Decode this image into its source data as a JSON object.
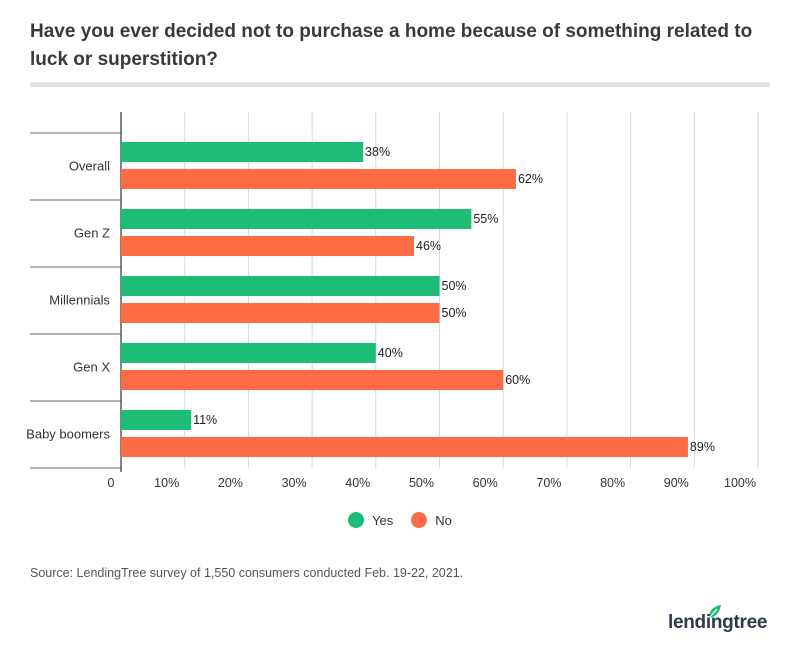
{
  "title": "Have you ever decided not to purchase a home because of something related to luck or superstition?",
  "source": "Source: LendingTree survey of 1,550 consumers conducted Feb. 19-22, 2021.",
  "logo_text": "lendingtree",
  "colors": {
    "yes": "#1dbd76",
    "no": "#ff6b45",
    "grid": "#d9d9d9",
    "axis": "#333333"
  },
  "legend": [
    {
      "label": "Yes",
      "color": "#1dbd76"
    },
    {
      "label": "No",
      "color": "#ff6b45"
    }
  ],
  "chart_data": {
    "type": "bar",
    "orientation": "horizontal",
    "categories": [
      "Overall",
      "Gen Z",
      "Millennials",
      "Gen X",
      "Baby boomers"
    ],
    "series": [
      {
        "name": "Yes",
        "values": [
          38,
          55,
          50,
          40,
          11
        ],
        "labels": [
          "38%",
          "55%",
          "50%",
          "40%",
          "11%"
        ]
      },
      {
        "name": "No",
        "values": [
          62,
          46,
          50,
          60,
          89
        ],
        "labels": [
          "62%",
          "46%",
          "50%",
          "60%",
          "89%"
        ]
      }
    ],
    "xlim": [
      0,
      100
    ],
    "x_ticks": [
      0,
      10,
      20,
      30,
      40,
      50,
      60,
      70,
      80,
      90,
      100
    ],
    "x_tick_labels": [
      "0",
      "10%",
      "20%",
      "30%",
      "40%",
      "50%",
      "60%",
      "70%",
      "80%",
      "90%",
      "100%"
    ],
    "grid": true,
    "legend_position": "bottom"
  }
}
